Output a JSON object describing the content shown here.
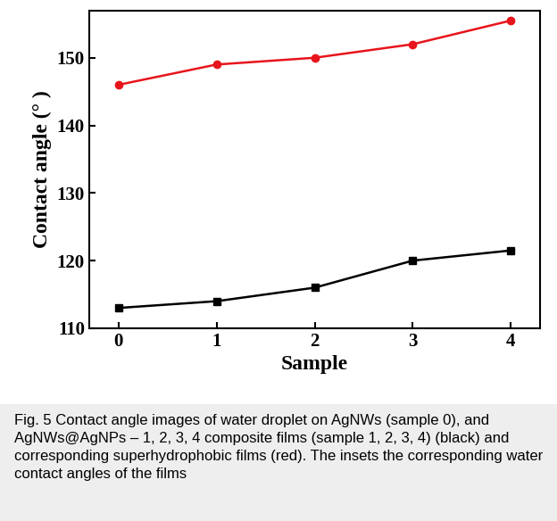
{
  "chart_data": {
    "type": "line",
    "xlabel": "Sample",
    "ylabel": "Contact angle (° )",
    "caption": "Fig. 5 Contact angle images of water droplet on AgNWs (sample 0), and AgNWs@AgNPs – 1, 2, 3, 4 composite films (sample 1, 2, 3, 4) (black) and corresponding superhydrophobic films (red). The insets the corresponding water contact angles of the films",
    "x": [
      0,
      1,
      2,
      3,
      4
    ],
    "series": [
      {
        "color": "#000000",
        "marker": "square",
        "line_style": "solid",
        "values": [
          113,
          114,
          116,
          120,
          121.5
        ]
      },
      {
        "color": "#e8141b",
        "marker": "circle",
        "line_style": "solid",
        "values": [
          146,
          149,
          150,
          152,
          155.5
        ]
      }
    ],
    "xlim": [
      -0.3,
      4.3
    ],
    "xticks": [
      0,
      1,
      2,
      3,
      4
    ],
    "ylim": [
      110,
      157
    ],
    "yticks": [
      110,
      120,
      130,
      140,
      150
    ],
    "grid": false
  }
}
